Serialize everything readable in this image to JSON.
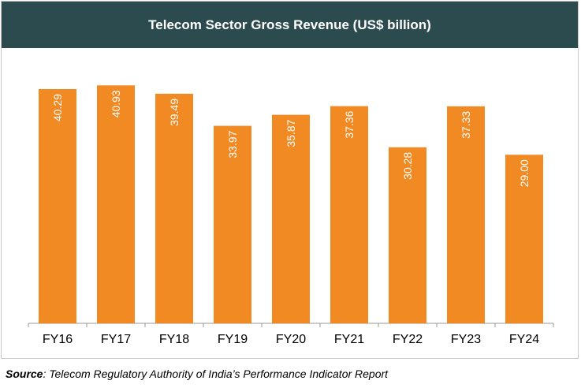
{
  "chart_data": {
    "type": "bar",
    "title": "Telecom Sector Gross Revenue (US$ billion)",
    "categories": [
      "FY16",
      "FY17",
      "FY18",
      "FY19",
      "FY20",
      "FY21",
      "FY22",
      "FY23",
      "FY24"
    ],
    "values": [
      40.29,
      40.93,
      39.49,
      33.97,
      35.87,
      37.36,
      30.28,
      37.33,
      29.0
    ],
    "value_labels": [
      "40.29",
      "40.93",
      "39.49",
      "33.97",
      "35.87",
      "37.36",
      "30.28",
      "37.33",
      "29.00"
    ],
    "xlabel": "",
    "ylabel": "",
    "ylim": [
      0,
      45
    ],
    "grid": false,
    "bar_color": "#f28a24",
    "label_color": "#ffffff"
  },
  "source": {
    "label": "Source",
    "text": ": Telecom Regulatory Authority of India’s Performance Indicator Report"
  }
}
